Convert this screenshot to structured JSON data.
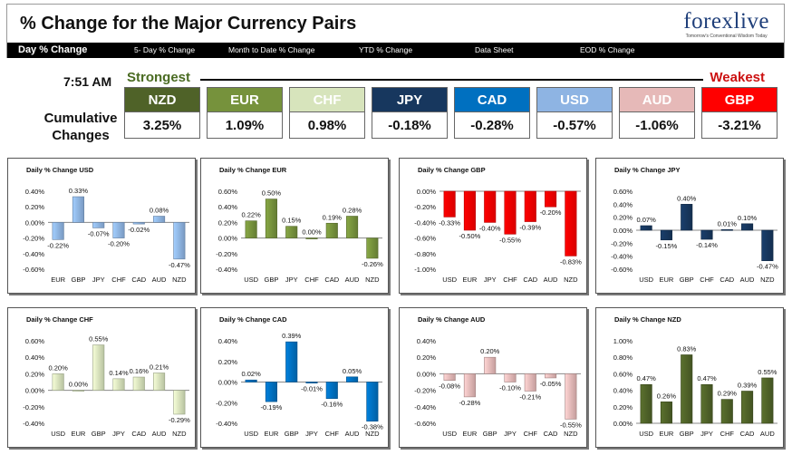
{
  "header": {
    "title": "% Change for the Major Currency Pairs",
    "logo": "forexlive",
    "logo_tagline": "Tomorrow's Conventional Wisdom Today",
    "nav": [
      "Day % Change",
      "5- Day % Change",
      "Month to Date % Change",
      "YTD % Change",
      "Data Sheet",
      "EOD % Change"
    ]
  },
  "summary": {
    "time": "7:51 AM",
    "strongest_label": "Strongest",
    "weakest_label": "Weakest",
    "cumulative_label_line1": "Cumulative",
    "cumulative_label_line2": "Changes",
    "tiles": [
      {
        "currency": "NZD",
        "change": "3.25%",
        "color": "#4f6228"
      },
      {
        "currency": "EUR",
        "change": "1.09%",
        "color": "#76923c"
      },
      {
        "currency": "CHF",
        "change": "0.98%",
        "color": "#d7e4bc"
      },
      {
        "currency": "JPY",
        "change": "-0.18%",
        "color": "#17375e"
      },
      {
        "currency": "CAD",
        "change": "-0.28%",
        "color": "#0070c0"
      },
      {
        "currency": "USD",
        "change": "-0.57%",
        "color": "#8eb4e3"
      },
      {
        "currency": "AUD",
        "change": "-1.06%",
        "color": "#e6b9b8"
      },
      {
        "currency": "GBP",
        "change": "-3.21%",
        "color": "#ff0000"
      }
    ]
  },
  "chart_data": [
    {
      "type": "bar",
      "title": "Daily % Change USD",
      "categories": [
        "EUR",
        "GBP",
        "JPY",
        "CHF",
        "CAD",
        "AUD",
        "NZD"
      ],
      "values": [
        -0.22,
        0.33,
        -0.07,
        -0.2,
        -0.02,
        0.08,
        -0.47
      ],
      "labels": [
        "-0.22%",
        "0.33%",
        "-0.07%",
        "-0.20%",
        "-0.02%",
        "0.08%",
        "-0.47%"
      ],
      "ticks": [
        "0.40%",
        "0.20%",
        "0.00%",
        "-0.20%",
        "-0.40%",
        "-0.60%"
      ],
      "ylim": [
        -0.6,
        0.4
      ],
      "color": "#8eb4e3"
    },
    {
      "type": "bar",
      "title": "Daily % Change EUR",
      "categories": [
        "USD",
        "GBP",
        "JPY",
        "CHF",
        "CAD",
        "AUD",
        "NZD"
      ],
      "values": [
        0.22,
        0.5,
        0.15,
        0.0,
        0.19,
        0.28,
        -0.26
      ],
      "labels": [
        "0.22%",
        "0.50%",
        "0.15%",
        "0.00%",
        "0.19%",
        "0.28%",
        "-0.26%"
      ],
      "ticks": [
        "0.60%",
        "0.40%",
        "0.20%",
        "0.00%",
        "-0.20%",
        "-0.40%"
      ],
      "ylim": [
        -0.4,
        0.6
      ],
      "color": "#76923c"
    },
    {
      "type": "bar",
      "title": "Daily % Change GBP",
      "categories": [
        "USD",
        "EUR",
        "JPY",
        "CHF",
        "CAD",
        "AUD",
        "NZD"
      ],
      "values": [
        -0.33,
        -0.5,
        -0.4,
        -0.55,
        -0.39,
        -0.2,
        -0.83
      ],
      "labels": [
        "-0.33%",
        "-0.50%",
        "-0.40%",
        "-0.55%",
        "-0.39%",
        "-0.20%",
        "-0.83%"
      ],
      "ticks": [
        "0.00%",
        "-0.20%",
        "-0.40%",
        "-0.60%",
        "-0.80%",
        "-1.00%"
      ],
      "ylim": [
        -1.0,
        0.0
      ],
      "color": "#ff0000"
    },
    {
      "type": "bar",
      "title": "Daily % Change JPY",
      "categories": [
        "USD",
        "EUR",
        "GBP",
        "CHF",
        "CAD",
        "AUD",
        "NZD"
      ],
      "values": [
        0.07,
        -0.15,
        0.4,
        -0.14,
        0.01,
        0.1,
        -0.47
      ],
      "labels": [
        "0.07%",
        "-0.15%",
        "0.40%",
        "-0.14%",
        "0.01%",
        "0.10%",
        "-0.47%"
      ],
      "ticks": [
        "0.60%",
        "0.40%",
        "0.20%",
        "0.00%",
        "-0.20%",
        "-0.40%",
        "-0.60%"
      ],
      "ylim": [
        -0.6,
        0.6
      ],
      "color": "#17375e"
    },
    {
      "type": "bar",
      "title": "Daily % Change CHF",
      "categories": [
        "USD",
        "EUR",
        "GBP",
        "JPY",
        "CAD",
        "AUD",
        "NZD"
      ],
      "values": [
        0.2,
        0.0,
        0.55,
        0.14,
        0.16,
        0.21,
        -0.29
      ],
      "labels": [
        "0.20%",
        "0.00%",
        "0.55%",
        "0.14%",
        "0.16%",
        "0.21%",
        "-0.29%"
      ],
      "ticks": [
        "0.60%",
        "0.40%",
        "0.20%",
        "0.00%",
        "-0.20%",
        "-0.40%"
      ],
      "ylim": [
        -0.4,
        0.6
      ],
      "color": "#d7e4bc"
    },
    {
      "type": "bar",
      "title": "Daily % Change CAD",
      "categories": [
        "USD",
        "EUR",
        "GBP",
        "JPY",
        "CHF",
        "AUD",
        "NZD"
      ],
      "values": [
        0.02,
        -0.19,
        0.39,
        -0.01,
        -0.16,
        0.05,
        -0.38
      ],
      "labels": [
        "0.02%",
        "-0.19%",
        "0.39%",
        "-0.01%",
        "-0.16%",
        "0.05%",
        "-0.38%"
      ],
      "ticks": [
        "0.40%",
        "0.20%",
        "0.00%",
        "-0.20%",
        "-0.40%"
      ],
      "ylim": [
        -0.4,
        0.4
      ],
      "color": "#0070c0"
    },
    {
      "type": "bar",
      "title": "Daily % Change AUD",
      "categories": [
        "USD",
        "EUR",
        "GBP",
        "JPY",
        "CHF",
        "CAD",
        "NZD"
      ],
      "values": [
        -0.08,
        -0.28,
        0.2,
        -0.1,
        -0.21,
        -0.05,
        -0.55
      ],
      "labels": [
        "-0.08%",
        "-0.28%",
        "0.20%",
        "-0.10%",
        "-0.21%",
        "-0.05%",
        "-0.55%"
      ],
      "ticks": [
        "0.40%",
        "0.20%",
        "0.00%",
        "-0.20%",
        "-0.40%",
        "-0.60%"
      ],
      "ylim": [
        -0.6,
        0.4
      ],
      "color": "#e6b9b8"
    },
    {
      "type": "bar",
      "title": "Daily % Change NZD",
      "categories": [
        "USD",
        "EUR",
        "GBP",
        "JPY",
        "CHF",
        "CAD",
        "AUD"
      ],
      "values": [
        0.47,
        0.26,
        0.83,
        0.47,
        0.29,
        0.39,
        0.55
      ],
      "labels": [
        "0.47%",
        "0.26%",
        "0.83%",
        "0.47%",
        "0.29%",
        "0.39%",
        "0.55%"
      ],
      "ticks": [
        "1.00%",
        "0.80%",
        "0.60%",
        "0.40%",
        "0.20%",
        "0.00%"
      ],
      "ylim": [
        0.0,
        1.0
      ],
      "color": "#4f6228"
    }
  ]
}
